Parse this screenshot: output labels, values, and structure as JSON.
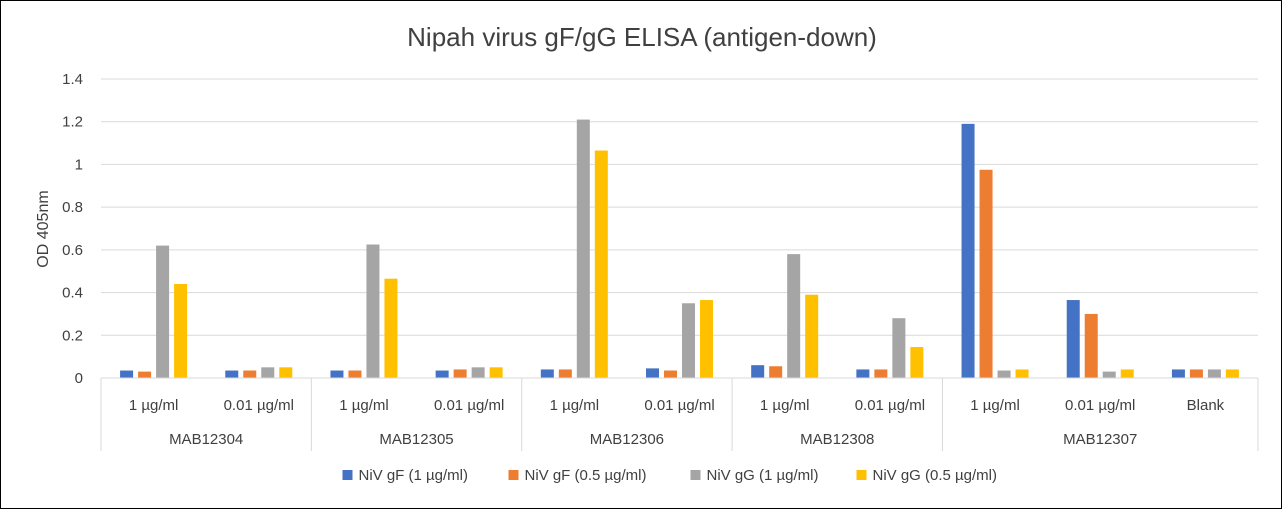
{
  "chart_data": {
    "type": "bar",
    "title": "Nipah virus gF/gG ELISA (antigen-down)",
    "ylabel": "OD 405nm",
    "xlabel": "",
    "ylim": [
      0,
      1.4
    ],
    "yticks": [
      "0",
      "0.2",
      "0.4",
      "0.6",
      "0.8",
      "1",
      "1.2",
      "1.4"
    ],
    "grid": true,
    "legend_position": "bottom",
    "categories": [
      "1 µg/ml",
      "0.01 µg/ml",
      "1 µg/ml",
      "0.01 µg/ml",
      "1 µg/ml",
      "0.01 µg/ml",
      "1 µg/ml",
      "0.01 µg/ml",
      "1 µg/ml",
      "0.01 µg/ml",
      "Blank"
    ],
    "groups": [
      {
        "label": "MAB12304",
        "span": 2
      },
      {
        "label": "MAB12305",
        "span": 2
      },
      {
        "label": "MAB12306",
        "span": 2
      },
      {
        "label": "MAB12308",
        "span": 2
      },
      {
        "label": "MAB12307",
        "span": 3
      }
    ],
    "series": [
      {
        "name": "NiV gF (1 µg/ml)",
        "color": "#4472C4",
        "values": [
          0.035,
          0.035,
          0.035,
          0.035,
          0.04,
          0.045,
          0.06,
          0.04,
          1.19,
          0.365,
          0.04
        ]
      },
      {
        "name": "NiV gF (0.5 µg/ml)",
        "color": "#ED7D31",
        "values": [
          0.03,
          0.035,
          0.035,
          0.04,
          0.04,
          0.035,
          0.055,
          0.04,
          0.975,
          0.3,
          0.04
        ]
      },
      {
        "name": "NiV gG (1 µg/ml)",
        "color": "#A5A5A5",
        "values": [
          0.62,
          0.05,
          0.625,
          0.05,
          1.21,
          0.35,
          0.58,
          0.28,
          0.035,
          0.03,
          0.04
        ]
      },
      {
        "name": "NiV gG (0.5 µg/ml)",
        "color": "#FFC000",
        "values": [
          0.44,
          0.05,
          0.465,
          0.05,
          1.065,
          0.365,
          0.39,
          0.145,
          0.04,
          0.04,
          0.04
        ]
      }
    ]
  }
}
